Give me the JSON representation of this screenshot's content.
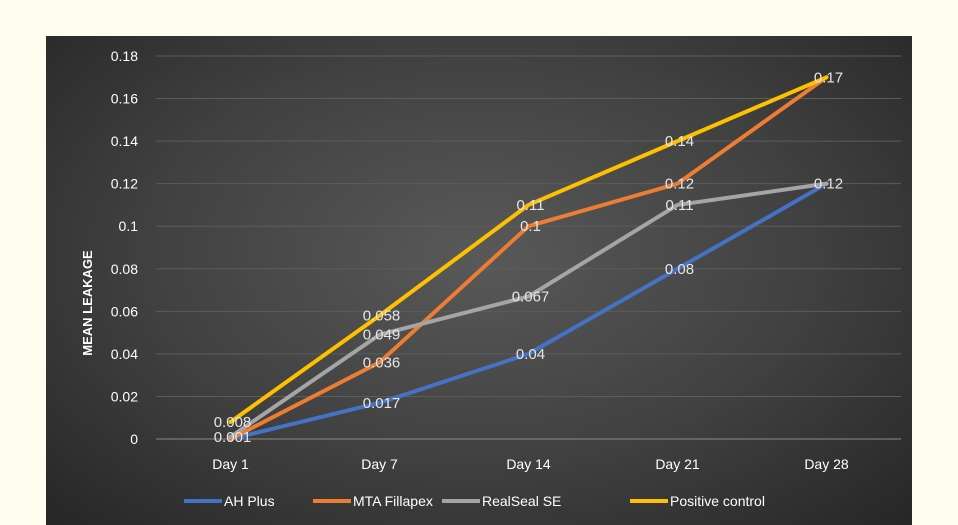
{
  "chart_data": {
    "type": "line",
    "title": "",
    "xlabel": "",
    "ylabel": "MEAN LEAKAGE",
    "categories": [
      "Day 1",
      "Day 7",
      "Day 14",
      "Day 21",
      "Day 28"
    ],
    "y_ticks": [
      "0",
      "0.02",
      "0.04",
      "0.06",
      "0.08",
      "0.1",
      "0.12",
      "0.14",
      "0.16",
      "0.18"
    ],
    "ylim": [
      0,
      0.18
    ],
    "grid": true,
    "legend_position": "bottom",
    "series": [
      {
        "name": "AH Plus",
        "color": "#4472c4",
        "values": [
          0,
          0.017,
          0.04,
          0.08,
          0.12
        ],
        "labels": [
          "",
          "0.017",
          "0.04",
          "0.08",
          "0.12"
        ]
      },
      {
        "name": "MTA Fillapex",
        "color": "#ed7d31",
        "values": [
          0,
          0.036,
          0.1,
          0.12,
          0.17
        ],
        "labels": [
          "",
          "0.036",
          "0.1",
          "0.12",
          "0.17"
        ]
      },
      {
        "name": "RealSeal SE",
        "color": "#a5a5a5",
        "values": [
          0.001,
          0.049,
          0.067,
          0.11,
          0.12
        ],
        "labels": [
          "0.001",
          "0.049",
          "0.067",
          "0.11",
          ""
        ]
      },
      {
        "name": "Positive control",
        "color": "#ffc000",
        "values": [
          0.008,
          0.058,
          0.11,
          0.14,
          0.17
        ],
        "labels": [
          "0.008",
          "0.058",
          "0.11",
          "0.14",
          ""
        ]
      }
    ]
  }
}
